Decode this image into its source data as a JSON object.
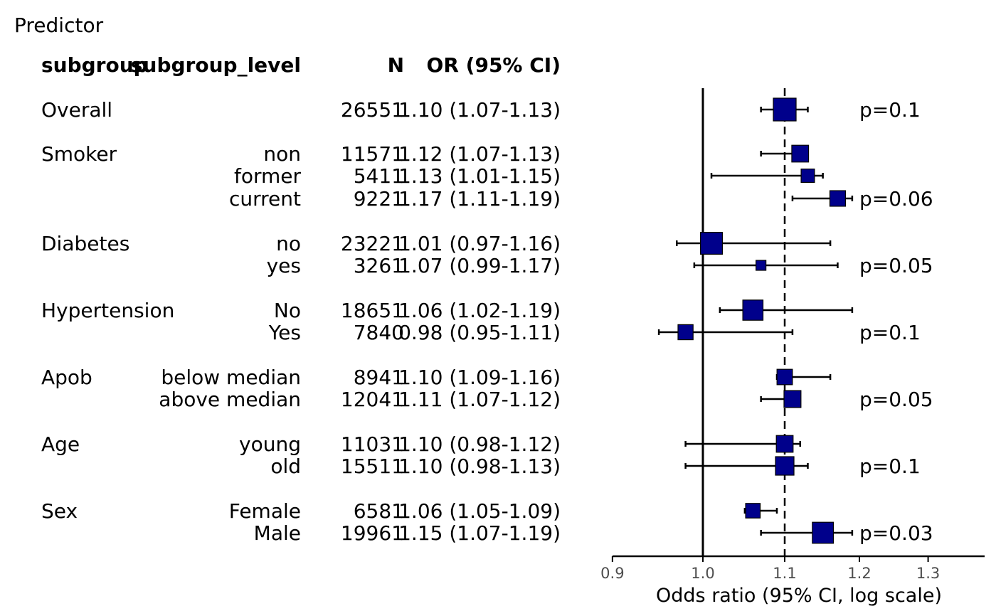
{
  "chart_data": {
    "type": "forest",
    "title": "Predictor",
    "headers": {
      "subgroup": "subgroup",
      "subgroup_level": "subgroup_level",
      "n": "N",
      "or_ci": "OR (95% CI)"
    },
    "xlabel": "Odds ratio (95% CI, log scale)",
    "x_ticks": [
      "0.9",
      "1.0",
      "1.1",
      "1.2",
      "1.3"
    ],
    "xlim": [
      0.9,
      1.37
    ],
    "x_scale": "log",
    "reference_lines": {
      "null": 1.0,
      "overall": 1.1
    },
    "rows": [
      {
        "group": "Overall",
        "level": "",
        "n": "26551",
        "or_ci": "1.10 (1.07-1.13)",
        "or": 1.1,
        "lo": 1.07,
        "hi": 1.13,
        "weight": 1.0
      },
      {
        "group": "Smoker",
        "level": "non",
        "n": "11571",
        "or_ci": "1.12 (1.07-1.13)",
        "or": 1.12,
        "lo": 1.07,
        "hi": 1.13,
        "weight": 0.65
      },
      {
        "group": "",
        "level": "former",
        "n": "5411",
        "or_ci": "1.13 (1.01-1.15)",
        "or": 1.13,
        "lo": 1.01,
        "hi": 1.15,
        "weight": 0.45
      },
      {
        "group": "",
        "level": "current",
        "n": "9221",
        "or_ci": "1.17 (1.11-1.19)",
        "or": 1.17,
        "lo": 1.11,
        "hi": 1.19,
        "weight": 0.58
      },
      {
        "group": "Diabetes",
        "level": "no",
        "n": "23221",
        "or_ci": "1.01 (0.97-1.16)",
        "or": 1.01,
        "lo": 0.97,
        "hi": 1.16,
        "weight": 0.95
      },
      {
        "group": "",
        "level": "yes",
        "n": "3261",
        "or_ci": "1.07 (0.99-1.17)",
        "or": 1.07,
        "lo": 0.99,
        "hi": 1.17,
        "weight": 0.25
      },
      {
        "group": "Hypertension",
        "level": "No",
        "n": "18651",
        "or_ci": "1.06 (1.02-1.19)",
        "or": 1.06,
        "lo": 1.02,
        "hi": 1.19,
        "weight": 0.85
      },
      {
        "group": "",
        "level": "Yes",
        "n": "7840",
        "or_ci": "0.98 (0.95-1.11)",
        "or": 0.98,
        "lo": 0.95,
        "hi": 1.11,
        "weight": 0.55
      },
      {
        "group": "Apob",
        "level": "below median",
        "n": "8941",
        "or_ci": "1.10 (1.09-1.16)",
        "or": 1.1,
        "lo": 1.09,
        "hi": 1.16,
        "weight": 0.57
      },
      {
        "group": "",
        "level": "above median",
        "n": "12041",
        "or_ci": "1.11 (1.07-1.12)",
        "or": 1.11,
        "lo": 1.07,
        "hi": 1.12,
        "weight": 0.66
      },
      {
        "group": "Age",
        "level": "young",
        "n": "11031",
        "or_ci": "1.10 (0.98-1.12)",
        "or": 1.1,
        "lo": 0.98,
        "hi": 1.12,
        "weight": 0.65
      },
      {
        "group": "",
        "level": "old",
        "n": "15511",
        "or_ci": "1.10 (0.98-1.13)",
        "or": 1.1,
        "lo": 0.98,
        "hi": 1.13,
        "weight": 0.75
      },
      {
        "group": "Sex",
        "level": "Female",
        "n": "6581",
        "or_ci": "1.06 (1.05-1.09)",
        "or": 1.06,
        "lo": 1.05,
        "hi": 1.09,
        "weight": 0.52
      },
      {
        "group": "",
        "level": "Male",
        "n": "19961",
        "or_ci": "1.15 (1.07-1.19)",
        "or": 1.15,
        "lo": 1.07,
        "hi": 1.19,
        "weight": 0.9
      }
    ],
    "p_values": [
      {
        "row": 0,
        "text": "p=0.1"
      },
      {
        "row": 3,
        "text": "p=0.06"
      },
      {
        "row": 5,
        "text": "p=0.05"
      },
      {
        "row": 7,
        "text": "p=0.1"
      },
      {
        "row": 9,
        "text": "p=0.05"
      },
      {
        "row": 11,
        "text": "p=0.1"
      },
      {
        "row": 13,
        "text": "p=0.03"
      }
    ],
    "colors": {
      "marker_fill": "#00008B",
      "marker_stroke": "#000000",
      "line": "#000000"
    }
  }
}
